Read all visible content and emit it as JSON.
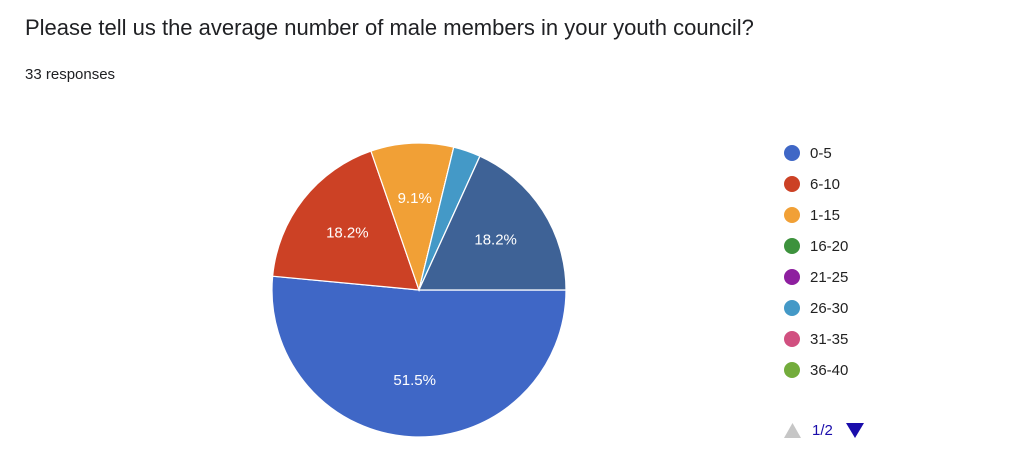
{
  "chart_data": {
    "type": "pie",
    "title": "Please tell us the average number of male members in your youth council?",
    "subtitle": "33 responses",
    "categories": [
      "0-5",
      "6-10",
      "1-15",
      "16-20",
      "21-25",
      "26-30",
      "31-35",
      "36-40",
      null
    ],
    "values": [
      51.5,
      18.2,
      9.1,
      0,
      0,
      3.0,
      0,
      0,
      18.2
    ],
    "value_labels": [
      "51.5%",
      "18.2%",
      "9.1%",
      null,
      null,
      null,
      null,
      null,
      "18.2%"
    ],
    "colors": [
      "#3f67c6",
      "#cc4125",
      "#f1a036",
      "#3d923d",
      "#8e1f9f",
      "#4499c7",
      "#d15080",
      "#73ac3c",
      "#3e6296"
    ],
    "legend_page": "1/2"
  }
}
